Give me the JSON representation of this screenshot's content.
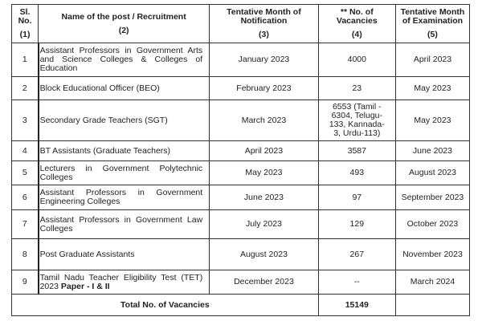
{
  "headers": [
    {
      "title": "Sl. No.",
      "num": "(1)"
    },
    {
      "title": "Name of the post / Recruitment",
      "num": "(2)"
    },
    {
      "title": "Tentative Month of Notification",
      "num": "(3)"
    },
    {
      "title": "** No. of Vacancies",
      "num": "(4)"
    },
    {
      "title": "Tentative Month of Examination",
      "num": "(5)"
    }
  ],
  "rows": [
    {
      "sl": "1",
      "name": "Assistant Professors in Government Arts and Science Colleges & Colleges of Education",
      "notification": "January 2023",
      "vacancies": "4000",
      "exam": "April 2023"
    },
    {
      "sl": "2",
      "name": "Block Educational Officer (BEO)",
      "notification": "February 2023",
      "vacancies": "23",
      "exam": "May 2023"
    },
    {
      "sl": "3",
      "name": "Secondary Grade Teachers (SGT)",
      "notification": "March  2023",
      "vacancies": "6553 (Tamil - 6304, Telugu-133, Kannada-3, Urdu-113)",
      "exam": "May 2023"
    },
    {
      "sl": "4",
      "name": "BT Assistants (Graduate Teachers)",
      "notification": "April 2023",
      "vacancies": "3587",
      "exam": "June 2023"
    },
    {
      "sl": "5",
      "name": "Lecturers in Government Polytechnic Colleges",
      "notification": "May 2023",
      "vacancies": "493",
      "exam": "August 2023"
    },
    {
      "sl": "6",
      "name": "Assistant Professors in Government Engineering Colleges",
      "notification": "June 2023",
      "vacancies": "97",
      "exam": "September 2023"
    },
    {
      "sl": "7",
      "name": "Assistant Professors in Government Law Colleges",
      "notification": "July 2023",
      "vacancies": "129",
      "exam": "October 2023"
    },
    {
      "sl": "8",
      "name": "Post Graduate Assistants",
      "notification": "August 2023",
      "vacancies": "267",
      "exam": "November 2023"
    },
    {
      "sl": "9",
      "name": "Tamil Nadu Teacher Eligibility Test (TET) 2023 ",
      "name_bold": "Paper - I & II",
      "notification": "December 2023",
      "vacancies": "--",
      "exam": "March 2024"
    }
  ],
  "total": {
    "label": "Total No. of Vacancies",
    "value": "15149"
  }
}
